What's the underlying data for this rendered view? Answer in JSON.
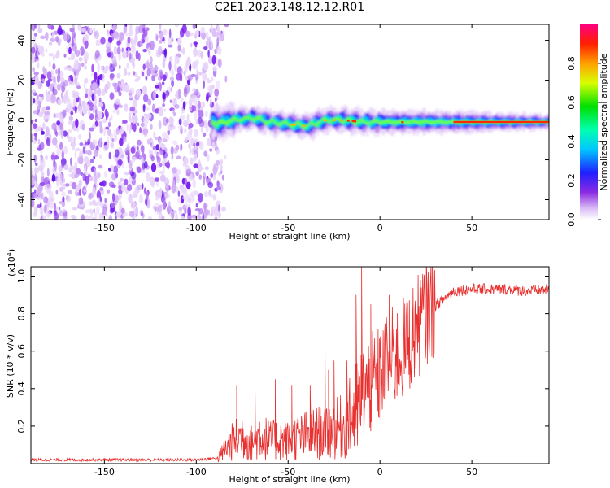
{
  "title": "C2E1.2023.148.12.12.R01",
  "chart_data": [
    {
      "type": "heatmap",
      "xlabel": "Height of straight line (km)",
      "ylabel": "Frequency (Hz)",
      "xlim": [
        -190,
        92
      ],
      "ylim": [
        -50,
        48
      ],
      "x_ticks": [
        -150,
        -100,
        -50,
        0,
        50
      ],
      "y_ticks": [
        -40,
        -20,
        0,
        20,
        40
      ],
      "noise_region_x": [
        -190,
        -86
      ],
      "signal_track": [
        {
          "x": -90,
          "y": -2
        },
        {
          "x": -80,
          "y": 0
        },
        {
          "x": -70,
          "y": 1
        },
        {
          "x": -60,
          "y": -1
        },
        {
          "x": -50,
          "y": -2
        },
        {
          "x": -40,
          "y": -3
        },
        {
          "x": -30,
          "y": 0
        },
        {
          "x": -20,
          "y": 0
        },
        {
          "x": -10,
          "y": -1
        },
        {
          "x": 0,
          "y": -1
        },
        {
          "x": 20,
          "y": -1
        },
        {
          "x": 50,
          "y": -1
        },
        {
          "x": 92,
          "y": -1
        }
      ],
      "colorbar": {
        "label": "Normalized spectral amplitude",
        "range": [
          0,
          1
        ],
        "ticks": [
          "0.0",
          "0.2",
          "0.4",
          "0.6",
          "0.8"
        ]
      },
      "grid": false
    },
    {
      "type": "line",
      "xlabel": "Height of straight line (km)",
      "ylabel": "SNR (10 * v/v)",
      "y_scale_label": "(x10",
      "y_scale_exp": "4",
      "xlim": [
        -190,
        92
      ],
      "ylim": [
        0,
        1.05
      ],
      "x_ticks": [
        -150,
        -100,
        -50,
        0,
        50
      ],
      "y_ticks": [
        "0.2",
        "0.4",
        "0.6",
        "0.8",
        "1.0"
      ],
      "color": "#e8302f",
      "series": [
        {
          "x": [
            -190,
            -160,
            -130,
            -100,
            -88,
            -84,
            -80,
            -75,
            -70,
            -65,
            -60,
            -55,
            -50,
            -45,
            -40,
            -35,
            -30,
            -25,
            -20,
            -15,
            -12,
            -10,
            -8,
            -5,
            0,
            5,
            10,
            15,
            20,
            25,
            30,
            35,
            40,
            50,
            60,
            70,
            80,
            92
          ],
          "y": [
            0.02,
            0.02,
            0.02,
            0.02,
            0.03,
            0.08,
            0.12,
            0.15,
            0.11,
            0.16,
            0.12,
            0.13,
            0.12,
            0.14,
            0.15,
            0.16,
            0.17,
            0.18,
            0.2,
            0.26,
            0.3,
            0.36,
            0.4,
            0.42,
            0.46,
            0.55,
            0.58,
            0.64,
            0.72,
            0.8,
            0.84,
            0.88,
            0.92,
            0.93,
            0.93,
            0.93,
            0.92,
            0.93
          ],
          "spike_x": [
            -78,
            -68,
            -57,
            -48,
            -38,
            -30,
            -28,
            -25,
            -18,
            -13,
            -10,
            -5,
            5,
            15,
            22
          ],
          "spike_y": [
            0.42,
            0.4,
            0.45,
            0.42,
            0.42,
            0.75,
            0.5,
            0.55,
            0.55,
            0.9,
            1.05,
            0.85,
            0.9,
            0.86,
            0.98
          ]
        }
      ],
      "grid": false
    }
  ]
}
